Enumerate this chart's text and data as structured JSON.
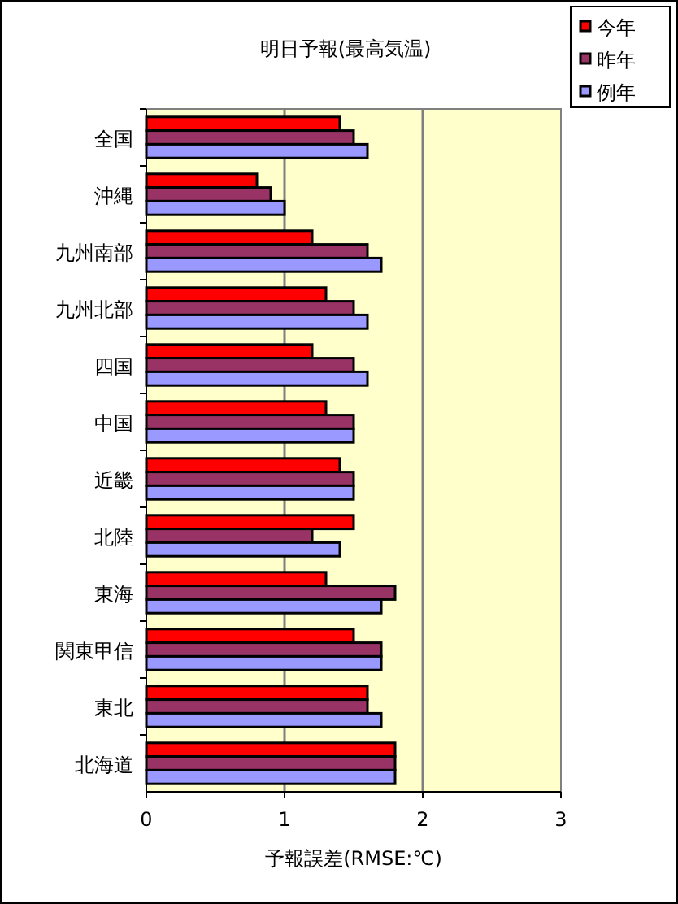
{
  "chart_data": {
    "type": "bar",
    "orientation": "horizontal",
    "title": "明日予報(最高気温)",
    "xlabel": "予報誤差(RMSE:℃)",
    "categories": [
      "全国",
      "沖縄",
      "九州南部",
      "九州北部",
      "四国",
      "中国",
      "近畿",
      "北陸",
      "東海",
      "関東甲信",
      "東北",
      "北海道"
    ],
    "series": [
      {
        "name": "今年",
        "color": "#ff0000",
        "values": [
          1.4,
          0.8,
          1.2,
          1.3,
          1.2,
          1.3,
          1.4,
          1.5,
          1.3,
          1.5,
          1.6,
          1.8
        ]
      },
      {
        "name": "昨年",
        "color": "#993366",
        "values": [
          1.5,
          0.9,
          1.6,
          1.5,
          1.5,
          1.5,
          1.5,
          1.2,
          1.8,
          1.7,
          1.6,
          1.8
        ]
      },
      {
        "name": "例年",
        "color": "#9999ff",
        "values": [
          1.6,
          1.0,
          1.7,
          1.6,
          1.6,
          1.5,
          1.5,
          1.4,
          1.7,
          1.7,
          1.7,
          1.8
        ]
      }
    ],
    "xlim": [
      0,
      3
    ],
    "xticks": [
      0,
      1,
      2,
      3
    ],
    "grid": "x",
    "legend": "top right"
  }
}
